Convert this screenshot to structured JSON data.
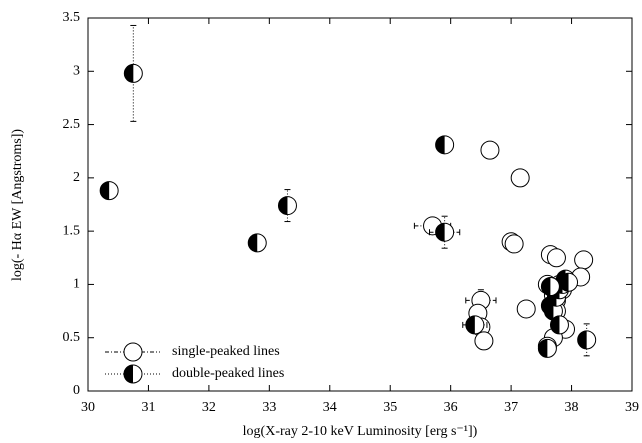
{
  "chart_data": {
    "type": "scatter",
    "xlabel": "log(X-ray 2-10 keV Luminosity [erg s⁻¹])",
    "ylabel": "log(- Hα EW [Angstroms])",
    "xlim": [
      30,
      39
    ],
    "xticks": [
      30,
      31,
      32,
      33,
      34,
      35,
      36,
      37,
      38,
      39
    ],
    "ylim": [
      0,
      3.5
    ],
    "yticks": [
      0,
      0.5,
      1,
      1.5,
      2,
      2.5,
      3,
      3.5
    ],
    "legend": "lower left",
    "series": [
      {
        "name": "single-peaked lines",
        "marker": "open",
        "color": "#000000",
        "x": [
          36.65,
          37.15,
          35.7,
          37.0,
          37.05,
          37.65,
          37.75,
          38.2,
          38.15,
          37.6,
          37.8,
          37.85,
          37.7,
          37.75,
          36.5,
          36.45,
          37.25,
          37.75,
          36.5,
          37.9,
          36.55,
          37.7,
          37.6
        ],
        "values": [
          2.26,
          2.0,
          1.55,
          1.4,
          1.38,
          1.28,
          1.25,
          1.23,
          1.07,
          1.0,
          1.0,
          0.95,
          0.9,
          0.85,
          0.85,
          0.73,
          0.77,
          0.75,
          0.6,
          0.58,
          0.47,
          0.5,
          0.42
        ],
        "xerr": [
          null,
          null,
          0.3,
          null,
          null,
          null,
          null,
          null,
          null,
          null,
          null,
          null,
          null,
          null,
          0.25,
          null,
          null,
          null,
          null,
          null,
          null,
          null,
          null
        ],
        "yerr": [
          null,
          null,
          0.05,
          null,
          null,
          null,
          null,
          null,
          null,
          null,
          null,
          null,
          null,
          null,
          0.1,
          null,
          null,
          null,
          null,
          null,
          null,
          null,
          null
        ]
      },
      {
        "name": "double-peaked lines",
        "marker": "half",
        "color": "#000000",
        "x": [
          30.75,
          30.35,
          32.8,
          33.3,
          35.9,
          35.9,
          36.4,
          38.25,
          37.6,
          37.65,
          37.7,
          37.75,
          37.8,
          37.85,
          37.9,
          37.95,
          37.8,
          37.65
        ],
        "values": [
          2.98,
          1.88,
          1.39,
          1.74,
          2.31,
          1.49,
          0.62,
          0.48,
          0.4,
          0.8,
          0.75,
          0.88,
          0.95,
          1.0,
          1.05,
          1.02,
          0.62,
          0.98
        ],
        "xerr": [
          null,
          null,
          null,
          null,
          null,
          0.25,
          0.2,
          null,
          null,
          null,
          null,
          null,
          null,
          null,
          null,
          null,
          null,
          null
        ],
        "yerr": [
          0.45,
          null,
          null,
          0.15,
          null,
          0.15,
          null,
          0.15,
          null,
          null,
          null,
          null,
          null,
          null,
          null,
          null,
          null,
          null
        ]
      }
    ]
  }
}
